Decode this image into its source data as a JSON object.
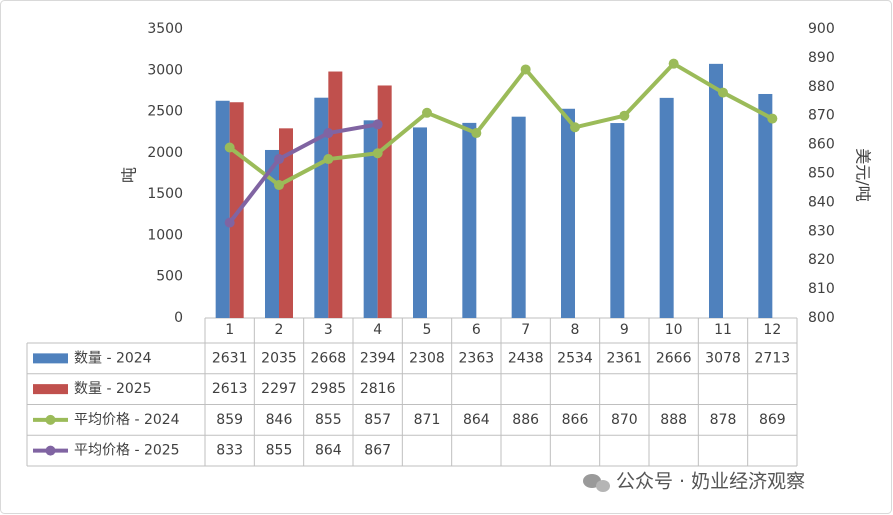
{
  "chart_data": {
    "type": "bar",
    "categories": [
      "1",
      "2",
      "3",
      "4",
      "5",
      "6",
      "7",
      "8",
      "9",
      "10",
      "11",
      "12"
    ],
    "series": [
      {
        "name": "数量 - 2024",
        "kind": "bar",
        "color": "#4f81bd",
        "values": [
          2631,
          2035,
          2668,
          2394,
          2308,
          2363,
          2438,
          2534,
          2361,
          2666,
          3078,
          2713
        ]
      },
      {
        "name": "数量 - 2025",
        "kind": "bar",
        "color": "#c0504d",
        "values": [
          2613,
          2297,
          2985,
          2816,
          null,
          null,
          null,
          null,
          null,
          null,
          null,
          null
        ]
      },
      {
        "name": "平均价格 - 2024",
        "kind": "line",
        "axis": "y2",
        "color": "#9bbb59",
        "values": [
          859,
          846,
          855,
          857,
          871,
          864,
          886,
          866,
          870,
          888,
          878,
          869
        ]
      },
      {
        "name": "平均价格 - 2025",
        "kind": "line",
        "axis": "y2",
        "color": "#8064a2",
        "values": [
          833,
          855,
          864,
          867,
          null,
          null,
          null,
          null,
          null,
          null,
          null,
          null
        ]
      }
    ],
    "ylabel": "吨",
    "y2label": "美元/吨",
    "ylim": [
      0,
      3500
    ],
    "yticks": [
      0,
      500,
      1000,
      1500,
      2000,
      2500,
      3000,
      3500
    ],
    "y2lim": [
      800,
      900
    ],
    "y2ticks": [
      800,
      810,
      820,
      830,
      840,
      850,
      860,
      870,
      880,
      890,
      900
    ],
    "data_table": true,
    "watermark": "公众号 · 奶业经济观察"
  }
}
